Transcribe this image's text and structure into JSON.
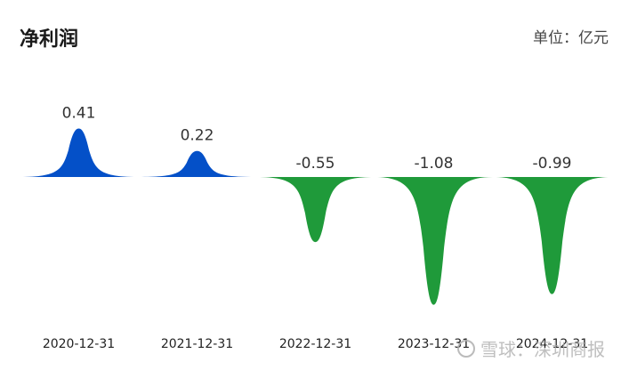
{
  "header": {
    "title": "净利润",
    "unit": "单位：亿元"
  },
  "watermark": {
    "text": "雪球：深圳商报"
  },
  "colors": {
    "positive": "#0450c8",
    "negative": "#1f9a3a"
  },
  "chart_data": {
    "type": "area",
    "title": "净利润",
    "unit": "亿元",
    "categories": [
      "2020-12-31",
      "2021-12-31",
      "2022-12-31",
      "2023-12-31",
      "2024-12-31"
    ],
    "values": [
      0.41,
      0.22,
      -0.55,
      -1.08,
      -0.99
    ],
    "value_labels": [
      "0.41",
      "0.22",
      "-0.55",
      "-1.08",
      "-0.99"
    ],
    "grid": false,
    "legend": "none"
  }
}
